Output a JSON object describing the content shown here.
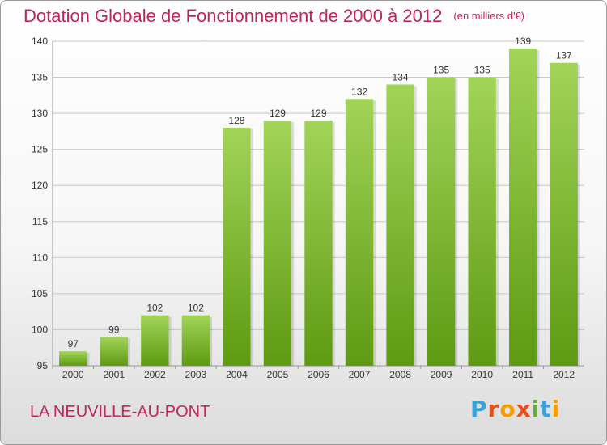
{
  "header": {
    "title": "Dotation Globale de Fonctionnement de 2000 à 2012",
    "unit": "(en milliers d'€)"
  },
  "footer": {
    "commune": "LA NEUVILLE-AU-PONT",
    "brand": "Proxiti"
  },
  "colors": {
    "title": "#c0245c",
    "bar_light": "#9ed052",
    "bar_dark": "#5e9a12"
  },
  "chart_data": {
    "type": "bar",
    "title": "Dotation Globale de Fonctionnement de 2000 à 2012",
    "xlabel": "",
    "ylabel": "",
    "ylim": [
      95,
      140
    ],
    "yticks": [
      95,
      100,
      105,
      110,
      115,
      120,
      125,
      130,
      135,
      140
    ],
    "grid": true,
    "categories": [
      "2000",
      "2001",
      "2002",
      "2003",
      "2004",
      "2005",
      "2006",
      "2007",
      "2008",
      "2009",
      "2010",
      "2011",
      "2012"
    ],
    "values": [
      97,
      99,
      102,
      102,
      128,
      129,
      129,
      132,
      134,
      135,
      135,
      139,
      137
    ]
  }
}
